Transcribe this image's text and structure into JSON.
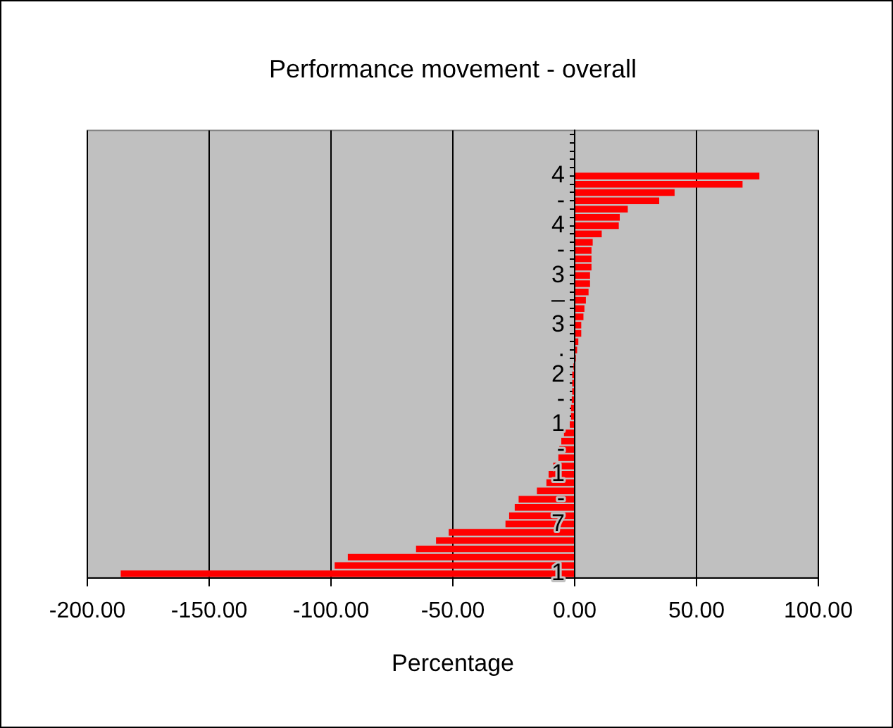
{
  "chart_data": {
    "type": "bar",
    "orientation": "horizontal",
    "title": "Performance movement - overall",
    "xlabel": "Percentage",
    "categories": [
      null,
      null,
      null,
      null,
      null,
      "4",
      null,
      null,
      "-",
      null,
      null,
      "4",
      null,
      null,
      "-",
      null,
      null,
      "3",
      null,
      null,
      "–",
      null,
      null,
      "3",
      null,
      null,
      ".",
      null,
      null,
      "2",
      null,
      null,
      "-",
      null,
      null,
      "1",
      null,
      null,
      "-",
      null,
      null,
      "1",
      null,
      null,
      "-",
      null,
      null,
      "7",
      null,
      null,
      null,
      null,
      null,
      "1"
    ],
    "values": [
      null,
      null,
      null,
      null,
      null,
      75.8,
      68.9,
      41.0,
      34.7,
      21.8,
      18.5,
      18.1,
      11.1,
      7.4,
      6.9,
      6.9,
      6.9,
      6.3,
      6.3,
      5.7,
      4.6,
      4.0,
      3.6,
      2.7,
      2.7,
      1.5,
      1.0,
      0.5,
      -0.5,
      -1.0,
      -1.0,
      -1.0,
      -1.2,
      -1.5,
      -1.5,
      -2.0,
      -4.4,
      -5.5,
      -6.3,
      -6.7,
      -8.8,
      -10.7,
      -11.6,
      -15.5,
      -23.0,
      -24.6,
      -26.9,
      -28.4,
      -51.7,
      -56.9,
      -65.1,
      -93.1,
      -98.5,
      -186.3
    ],
    "color": "#ff0000",
    "xlim": [
      -200,
      100
    ],
    "xticks": [
      {
        "value": -200,
        "label": "-200.00"
      },
      {
        "value": -150,
        "label": "-150.00"
      },
      {
        "value": -100,
        "label": "-100.00"
      },
      {
        "value": -50,
        "label": "-50.00"
      },
      {
        "value": 0,
        "label": "0.00"
      },
      {
        "value": 50,
        "label": "50.00"
      },
      {
        "value": 100,
        "label": "100.00"
      }
    ],
    "grid": "x",
    "legend": false
  }
}
